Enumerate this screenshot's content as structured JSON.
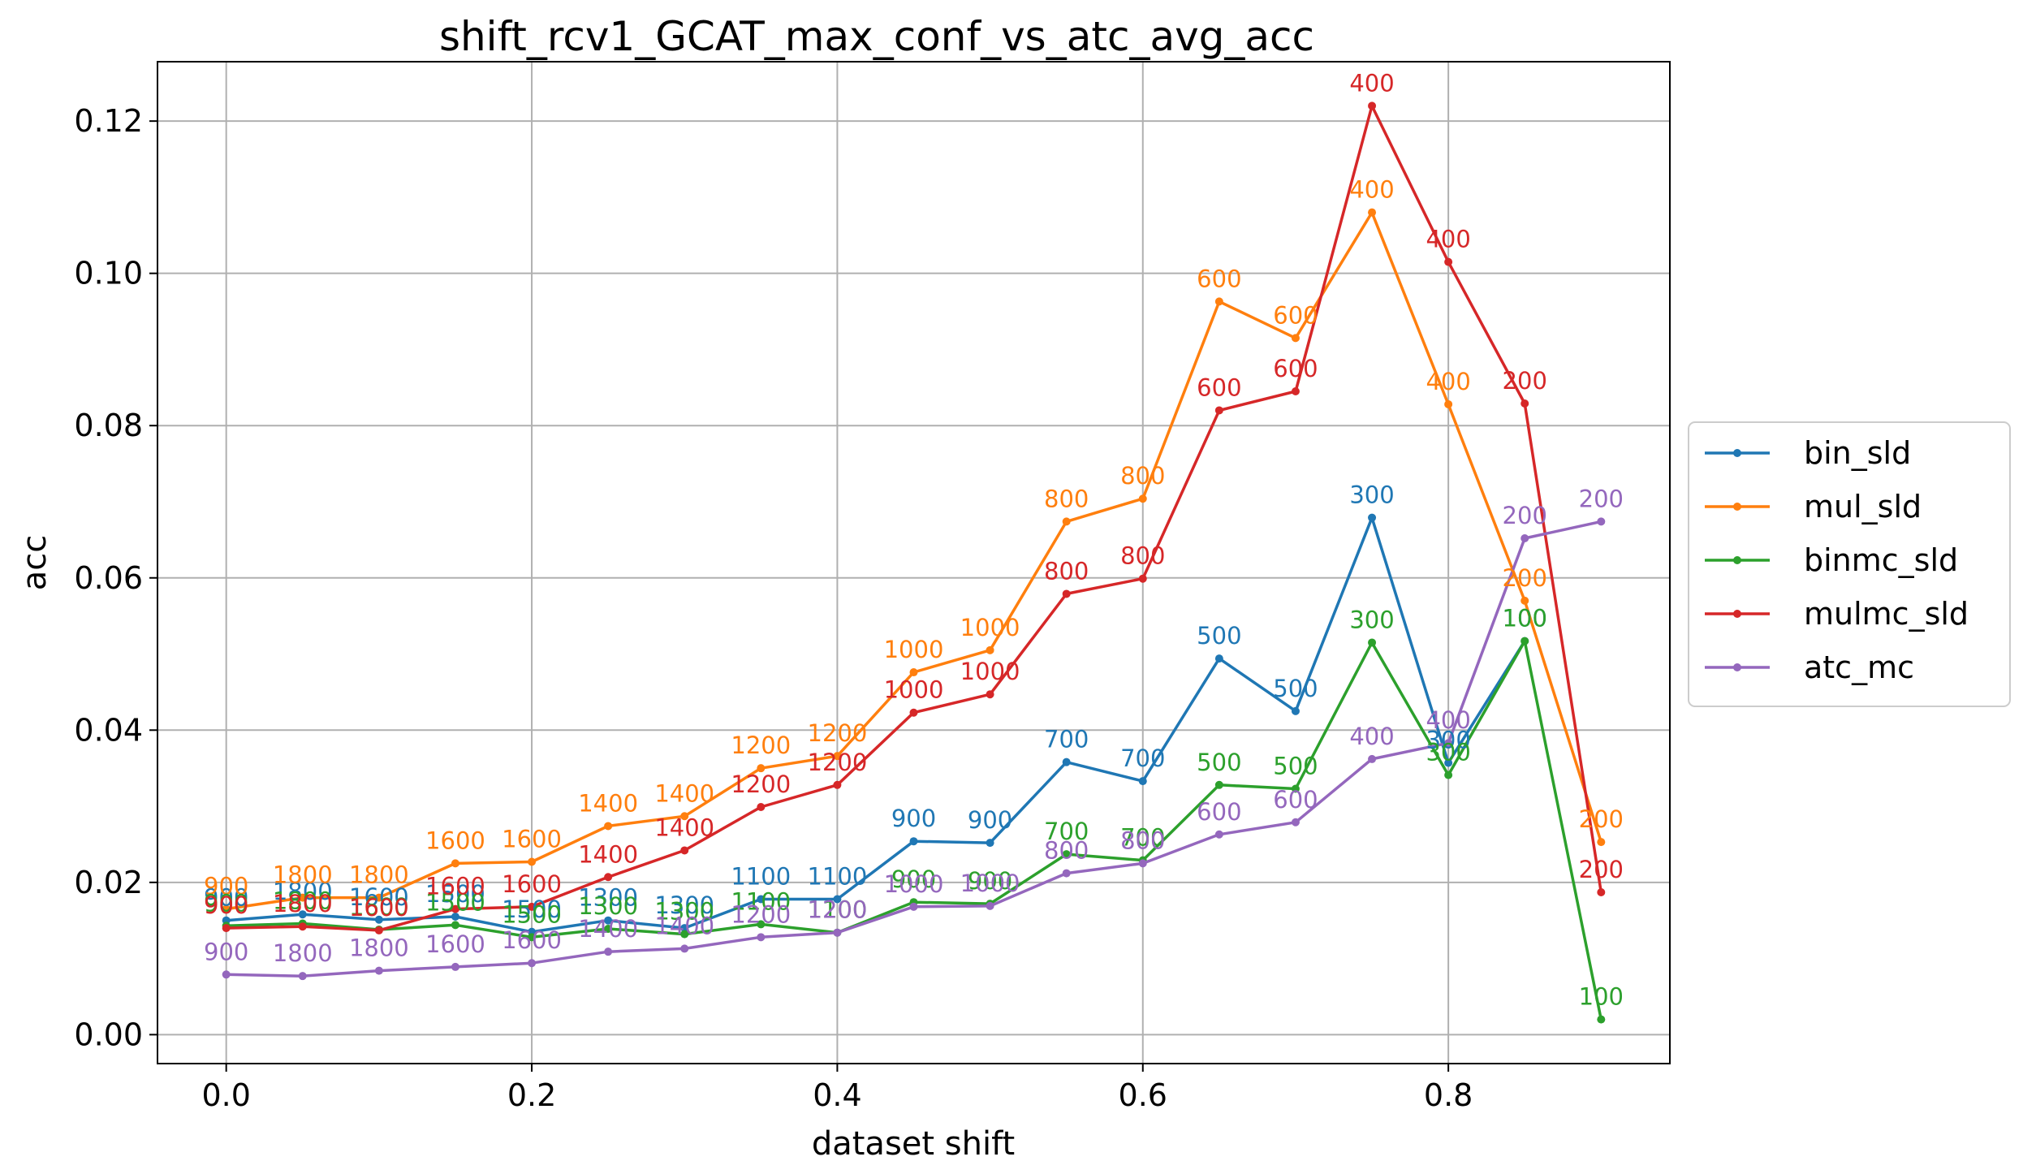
{
  "chart_data": {
    "type": "line",
    "title": "shift_rcv1_GCAT_max_conf_vs_atc_avg_acc",
    "xlabel": "dataset shift",
    "ylabel": "acc",
    "xlim": [
      -0.045,
      0.945
    ],
    "ylim": [
      -0.0038,
      0.1278
    ],
    "xticks": [
      0.0,
      0.2,
      0.4,
      0.6,
      0.8
    ],
    "xtick_labels": [
      "0.0",
      "0.2",
      "0.4",
      "0.6",
      "0.8"
    ],
    "yticks": [
      0.0,
      0.02,
      0.04,
      0.06,
      0.08,
      0.1,
      0.12
    ],
    "ytick_labels": [
      "0.00",
      "0.02",
      "0.04",
      "0.06",
      "0.08",
      "0.10",
      "0.12"
    ],
    "grid": true,
    "legend_position": "center-right-outside",
    "x": [
      0.0,
      0.05,
      0.1,
      0.15,
      0.2,
      0.25,
      0.3,
      0.35,
      0.4,
      0.45,
      0.5,
      0.55,
      0.6,
      0.65,
      0.7,
      0.75,
      0.8,
      0.85,
      0.9
    ],
    "series": [
      {
        "name": "bin_sld",
        "color": "#1f77b4",
        "values": [
          0.015,
          0.0158,
          0.0151,
          0.0155,
          0.0135,
          0.015,
          0.014,
          0.0178,
          0.0178,
          0.0254,
          0.0252,
          0.0358,
          0.0333,
          0.0494,
          0.0425,
          0.0679,
          0.0357,
          0.0517,
          null
        ],
        "labels": [
          "900",
          "1800",
          "1600",
          "1500",
          "1500",
          "1300",
          "1300",
          "1100",
          "1100",
          "900",
          "900",
          "700",
          "700",
          "500",
          "500",
          "300",
          "300",
          "100",
          ""
        ]
      },
      {
        "name": "mul_sld",
        "color": "#ff7f0e",
        "values": [
          0.0165,
          0.018,
          0.018,
          0.0225,
          0.0227,
          0.0274,
          0.0287,
          0.035,
          0.0366,
          0.0476,
          0.0505,
          0.0674,
          0.0704,
          0.0963,
          0.0915,
          0.108,
          0.0828,
          0.057,
          0.0253
        ],
        "labels": [
          "900",
          "1800",
          "1800",
          "1600",
          "1600",
          "1400",
          "1400",
          "1200",
          "1200",
          "1000",
          "1000",
          "800",
          "800",
          "600",
          "600",
          "400",
          "400",
          "200",
          "200"
        ]
      },
      {
        "name": "binmc_sld",
        "color": "#2ca02c",
        "values": [
          0.0143,
          0.0146,
          0.0138,
          0.0144,
          0.0128,
          0.0139,
          0.0132,
          0.0145,
          0.0134,
          0.0174,
          0.0172,
          0.0237,
          0.0229,
          0.0328,
          0.0323,
          0.0515,
          0.0341,
          0.0517,
          0.002
        ],
        "labels": [
          "900",
          "1800",
          "1600",
          "1500",
          "1500",
          "1300",
          "1300",
          "1100",
          "1100",
          "900",
          "900",
          "700",
          "700",
          "500",
          "500",
          "300",
          "300",
          "100",
          "100"
        ]
      },
      {
        "name": "mulmc_sld",
        "color": "#d62728",
        "values": [
          0.014,
          0.0142,
          0.0137,
          0.0165,
          0.0168,
          0.0207,
          0.0242,
          0.0299,
          0.0328,
          0.0423,
          0.0447,
          0.0579,
          0.0599,
          0.082,
          0.0845,
          0.122,
          0.1015,
          0.0829,
          0.0187
        ],
        "labels": [
          "900",
          "1800",
          "1600",
          "1600",
          "1600",
          "1400",
          "1400",
          "1200",
          "1200",
          "1000",
          "1000",
          "800",
          "800",
          "600",
          "600",
          "400",
          "400",
          "200",
          "200"
        ]
      },
      {
        "name": "atc_mc",
        "color": "#9467bd",
        "values": [
          0.0079,
          0.0077,
          0.0084,
          0.0089,
          0.0094,
          0.0109,
          0.0113,
          0.0128,
          0.0134,
          0.0168,
          0.0169,
          0.0212,
          0.0225,
          0.0263,
          0.0279,
          0.0362,
          0.0383,
          0.0652,
          0.0674
        ],
        "labels": [
          "900",
          "1800",
          "1800",
          "1600",
          "1600",
          "1400",
          "1400",
          "1200",
          "1200",
          "1000",
          "1000",
          "800",
          "800",
          "600",
          "600",
          "400",
          "400",
          "200",
          "200"
        ]
      }
    ]
  }
}
